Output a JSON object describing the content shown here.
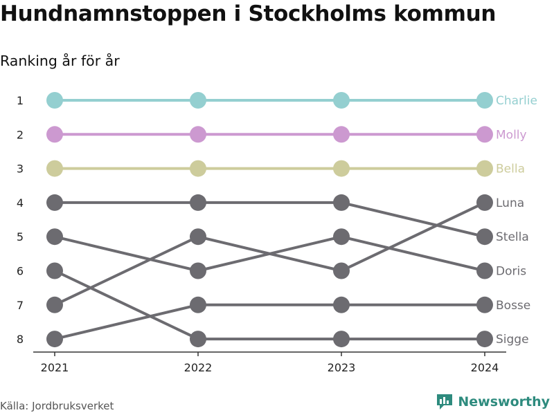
{
  "title": "Hundnamnstoppen i Stockholms kommun",
  "subtitle": "Ranking år för år",
  "source": "Källa: Jordbruksverket",
  "brand": "Newsworthy",
  "chart_data": {
    "type": "line",
    "x": [
      "2021",
      "2022",
      "2023",
      "2024"
    ],
    "ylim": [
      1,
      8
    ],
    "y_inverted": true,
    "y_ticks": [
      "1",
      "2",
      "3",
      "4",
      "5",
      "6",
      "7",
      "8"
    ],
    "series": [
      {
        "name": "Charlie",
        "values": [
          1,
          1,
          1,
          1
        ],
        "color": "#94cfd0"
      },
      {
        "name": "Molly",
        "values": [
          2,
          2,
          2,
          2
        ],
        "color": "#cc99d0"
      },
      {
        "name": "Bella",
        "values": [
          3,
          3,
          3,
          3
        ],
        "color": "#cdcc9c"
      },
      {
        "name": "Luna",
        "values": [
          7,
          5,
          6,
          4
        ],
        "color": "#6c6b70"
      },
      {
        "name": "Stella",
        "values": [
          4,
          4,
          4,
          5
        ],
        "color": "#6c6b70"
      },
      {
        "name": "Doris",
        "values": [
          5,
          6,
          5,
          6
        ],
        "color": "#6c6b70"
      },
      {
        "name": "Bosse",
        "values": [
          8,
          7,
          7,
          7
        ],
        "color": "#6c6b70"
      },
      {
        "name": "Sigge",
        "values": [
          6,
          8,
          8,
          8
        ],
        "color": "#6c6b70"
      }
    ]
  },
  "colors": {
    "axis": "#333333",
    "brand": "#2e8b7e"
  }
}
